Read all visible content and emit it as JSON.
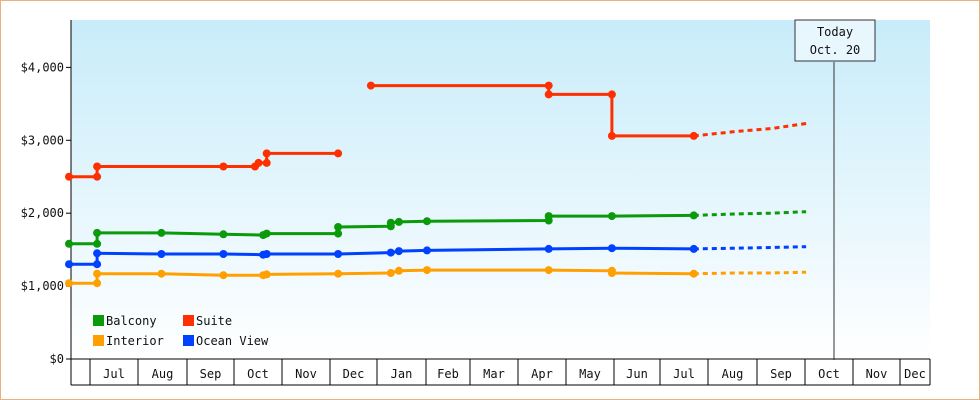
{
  "chart_data": {
    "type": "line",
    "yticks": [
      "$0",
      "$1,000",
      "$2,000",
      "$3,000",
      "$4,000"
    ],
    "ylim": [
      0,
      4650
    ],
    "months": [
      "Jul",
      "Aug",
      "Sep",
      "Oct",
      "Nov",
      "Dec",
      "Jan",
      "Feb",
      "Mar",
      "Apr",
      "May",
      "Jun",
      "Jul",
      "Aug",
      "Sep",
      "Oct",
      "Nov",
      "Dec"
    ],
    "today": {
      "line1": "Today",
      "line2": "Oct. 20"
    },
    "legend": {
      "placement": "bottom-left"
    },
    "series": [
      {
        "name": "Balcony",
        "color": "#0a9a0a",
        "points": [
          [
            0,
            1580
          ],
          [
            1.2,
            1580
          ],
          [
            1.2,
            1730
          ],
          [
            3.95,
            1730
          ],
          [
            6.6,
            1710
          ],
          [
            8.3,
            1700
          ],
          [
            8.45,
            1720
          ],
          [
            11.5,
            1720
          ],
          [
            11.5,
            1810
          ],
          [
            13.75,
            1820
          ],
          [
            13.75,
            1870
          ],
          [
            14.1,
            1880
          ],
          [
            15.3,
            1890
          ],
          [
            20.5,
            1900
          ],
          [
            20.5,
            1960
          ],
          [
            23.2,
            1960
          ],
          [
            26.7,
            1970
          ]
        ],
        "forecast": [
          [
            26.7,
            1970
          ],
          [
            28.5,
            1990
          ],
          [
            30.0,
            2000
          ],
          [
            31.5,
            2020
          ]
        ]
      },
      {
        "name": "Suite",
        "color": "#ff3000",
        "points": [
          [
            0,
            2500
          ],
          [
            1.2,
            2500
          ],
          [
            1.2,
            2640
          ],
          [
            6.6,
            2640
          ],
          [
            7.95,
            2640
          ],
          [
            8.1,
            2690
          ],
          [
            8.45,
            2690
          ],
          [
            8.45,
            2820
          ],
          [
            11.5,
            2820
          ]
        ],
        "points2": [
          [
            12.9,
            3750
          ],
          [
            20.5,
            3750
          ],
          [
            20.5,
            3630
          ],
          [
            23.2,
            3630
          ],
          [
            23.2,
            3060
          ],
          [
            26.7,
            3060
          ]
        ],
        "forecast": [
          [
            26.7,
            3060
          ],
          [
            28.5,
            3120
          ],
          [
            30.0,
            3160
          ],
          [
            31.5,
            3230
          ]
        ]
      },
      {
        "name": "Interior",
        "color": "#ffa000",
        "points": [
          [
            0,
            1040
          ],
          [
            1.2,
            1040
          ],
          [
            1.2,
            1170
          ],
          [
            3.95,
            1170
          ],
          [
            6.6,
            1150
          ],
          [
            8.3,
            1150
          ],
          [
            8.45,
            1160
          ],
          [
            11.5,
            1170
          ],
          [
            13.75,
            1180
          ],
          [
            14.1,
            1210
          ],
          [
            15.3,
            1220
          ],
          [
            20.5,
            1220
          ],
          [
            23.2,
            1210
          ],
          [
            23.2,
            1180
          ],
          [
            26.7,
            1170
          ]
        ],
        "forecast": [
          [
            26.7,
            1170
          ],
          [
            28.5,
            1180
          ],
          [
            30.0,
            1180
          ],
          [
            31.5,
            1190
          ]
        ]
      },
      {
        "name": "Ocean View",
        "color": "#0040ff",
        "points": [
          [
            0,
            1300
          ],
          [
            1.2,
            1300
          ],
          [
            1.2,
            1450
          ],
          [
            3.95,
            1440
          ],
          [
            6.6,
            1440
          ],
          [
            8.3,
            1430
          ],
          [
            8.45,
            1440
          ],
          [
            11.5,
            1440
          ],
          [
            13.75,
            1460
          ],
          [
            14.1,
            1480
          ],
          [
            15.3,
            1490
          ],
          [
            20.5,
            1510
          ],
          [
            23.2,
            1520
          ],
          [
            26.7,
            1510
          ]
        ],
        "forecast": [
          [
            26.7,
            1510
          ],
          [
            28.5,
            1520
          ],
          [
            30.0,
            1530
          ],
          [
            31.5,
            1540
          ]
        ]
      }
    ],
    "markers": {
      "Balcony": [
        [
          0,
          1580
        ],
        [
          1.2,
          1580
        ],
        [
          1.2,
          1730
        ],
        [
          3.95,
          1730
        ],
        [
          6.6,
          1710
        ],
        [
          8.3,
          1700
        ],
        [
          8.45,
          1720
        ],
        [
          11.5,
          1720
        ],
        [
          11.5,
          1810
        ],
        [
          13.75,
          1820
        ],
        [
          13.75,
          1870
        ],
        [
          14.1,
          1880
        ],
        [
          15.3,
          1890
        ],
        [
          20.5,
          1900
        ],
        [
          20.5,
          1960
        ],
        [
          23.2,
          1960
        ],
        [
          26.7,
          1970
        ]
      ],
      "Suite": [
        [
          0,
          2500
        ],
        [
          1.2,
          2500
        ],
        [
          1.2,
          2640
        ],
        [
          6.6,
          2640
        ],
        [
          7.95,
          2640
        ],
        [
          8.1,
          2690
        ],
        [
          8.45,
          2690
        ],
        [
          8.45,
          2820
        ],
        [
          11.5,
          2820
        ],
        [
          12.9,
          3750
        ],
        [
          20.5,
          3750
        ],
        [
          20.5,
          3630
        ],
        [
          23.2,
          3630
        ],
        [
          23.2,
          3060
        ],
        [
          26.7,
          3060
        ]
      ],
      "Interior": [
        [
          0,
          1040
        ],
        [
          1.2,
          1040
        ],
        [
          1.2,
          1170
        ],
        [
          3.95,
          1170
        ],
        [
          6.6,
          1150
        ],
        [
          8.3,
          1150
        ],
        [
          8.45,
          1160
        ],
        [
          11.5,
          1170
        ],
        [
          13.75,
          1180
        ],
        [
          14.1,
          1210
        ],
        [
          15.3,
          1220
        ],
        [
          20.5,
          1220
        ],
        [
          23.2,
          1210
        ],
        [
          23.2,
          1180
        ],
        [
          26.7,
          1170
        ]
      ],
      "Ocean View": [
        [
          0,
          1300
        ],
        [
          1.2,
          1300
        ],
        [
          1.2,
          1450
        ],
        [
          3.95,
          1440
        ],
        [
          6.6,
          1440
        ],
        [
          8.3,
          1430
        ],
        [
          8.45,
          1440
        ],
        [
          11.5,
          1440
        ],
        [
          13.75,
          1460
        ],
        [
          14.1,
          1480
        ],
        [
          15.3,
          1490
        ],
        [
          20.5,
          1510
        ],
        [
          23.2,
          1520
        ],
        [
          26.7,
          1510
        ]
      ]
    }
  }
}
